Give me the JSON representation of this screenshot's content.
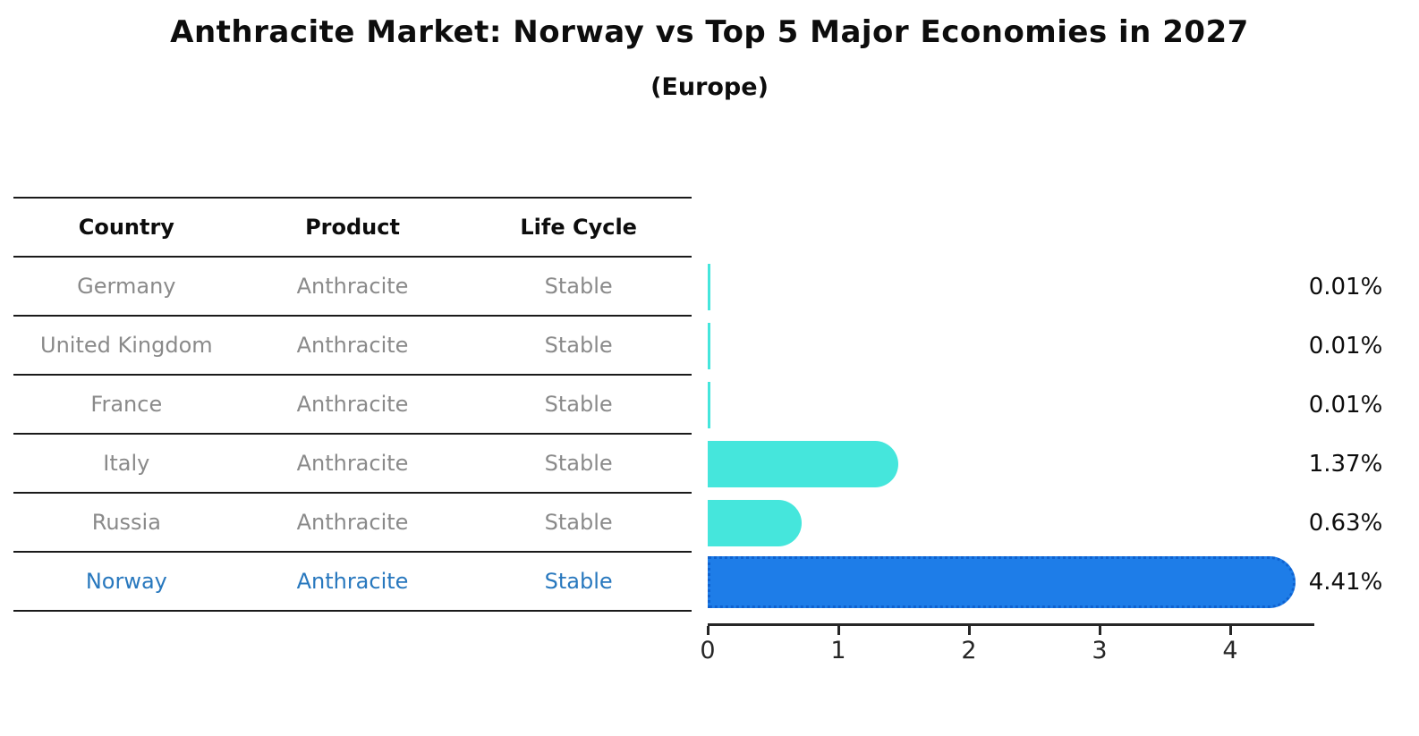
{
  "header": {
    "title": "Anthracite Market: Norway vs Top 5 Major Economies in 2027",
    "subtitle": "(Europe)"
  },
  "table": {
    "columns": [
      "Country",
      "Product",
      "Life Cycle"
    ],
    "rows": [
      {
        "country": "Germany",
        "product": "Anthracite",
        "life_cycle": "Stable",
        "highlight": false
      },
      {
        "country": "United Kingdom",
        "product": "Anthracite",
        "life_cycle": "Stable",
        "highlight": false
      },
      {
        "country": "France",
        "product": "Anthracite",
        "life_cycle": "Stable",
        "highlight": false
      },
      {
        "country": "Italy",
        "product": "Anthracite",
        "life_cycle": "Stable",
        "highlight": false
      },
      {
        "country": "Russia",
        "product": "Anthracite",
        "life_cycle": "Stable",
        "highlight": false
      },
      {
        "country": "Norway",
        "product": "Anthracite",
        "life_cycle": "Stable",
        "highlight": true
      }
    ]
  },
  "chart_data": {
    "type": "bar",
    "orientation": "horizontal",
    "title": "Anthracite Market: Norway vs Top 5 Major Economies in 2027 (Europe)",
    "categories": [
      "Germany",
      "United Kingdom",
      "France",
      "Italy",
      "Russia",
      "Norway"
    ],
    "values": [
      0.01,
      0.01,
      0.01,
      1.37,
      0.63,
      4.41
    ],
    "value_labels": [
      "0.01%",
      "0.01%",
      "0.01%",
      "1.37%",
      "0.63%",
      "4.41%"
    ],
    "xlabel": "",
    "ylabel": "",
    "x_ticks": [
      "0",
      "1",
      "2",
      "3",
      "4"
    ],
    "xlim": [
      0,
      4.64
    ],
    "grid": false,
    "legend": "none",
    "highlight_category": "Norway",
    "colors": {
      "bar_default": "#45e6dc",
      "bar_highlight": "#1e7de8",
      "bar_highlight_border": "#0f62d0",
      "row_text": "#8a8a8a",
      "highlight_text": "#2878be",
      "axis": "#262626"
    }
  }
}
